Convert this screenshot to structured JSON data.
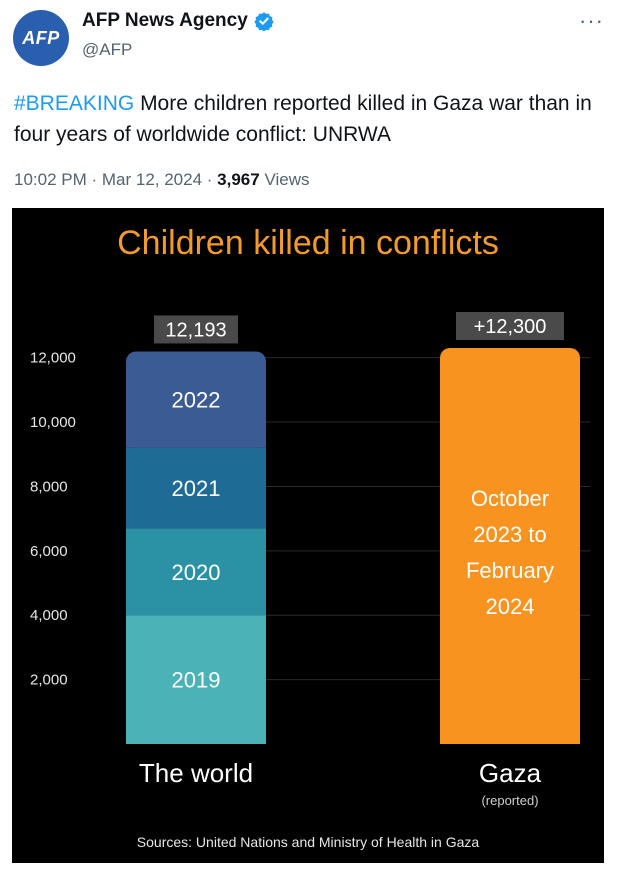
{
  "author": {
    "avatar_text": "AFP",
    "display_name": "AFP News Agency",
    "handle": "@AFP",
    "verified_icon": "verified-badge-icon",
    "more_icon": "more-options-icon"
  },
  "tweet": {
    "hashtag": "#BREAKING",
    "text": "More children reported killed in Gaza war than in four years of worldwide conflict: UNRWA"
  },
  "meta": {
    "time": "10:02 PM",
    "date": "Mar 12, 2024",
    "views_count": "3,967",
    "views_label": "Views"
  },
  "colors": {
    "brand": "#2a5fb0",
    "link": "#1d9bf0",
    "title": "#f39a2c",
    "gaza": "#f7931e",
    "seg_2019": "#4bb3b7",
    "seg_2020": "#2b92a6",
    "seg_2021": "#1e6b96",
    "seg_2022": "#3a5b93"
  },
  "chart_data": {
    "type": "bar",
    "title": "Children killed in conflicts",
    "ylim": [
      0,
      12300
    ],
    "yticks": [
      2000,
      4000,
      6000,
      8000,
      10000,
      12000
    ],
    "ytick_labels": [
      "2,000",
      "4,000",
      "6,000",
      "8,000",
      "10,000",
      "12,000"
    ],
    "categories": [
      "The world",
      "Gaza"
    ],
    "category_sublabels": [
      "",
      "(reported)"
    ],
    "total_labels": [
      "12,193",
      "+12,300"
    ],
    "stacked_world": [
      {
        "label": "2019",
        "value": 4000
      },
      {
        "label": "2020",
        "value": 2700
      },
      {
        "label": "2021",
        "value": 2500
      },
      {
        "label": "2022",
        "value": 2993
      }
    ],
    "gaza": {
      "value": 12300,
      "label_lines": [
        "October",
        "2023 to",
        "February",
        "2024"
      ]
    },
    "source": "Sources: United Nations and  Ministry of Health in Gaza"
  }
}
